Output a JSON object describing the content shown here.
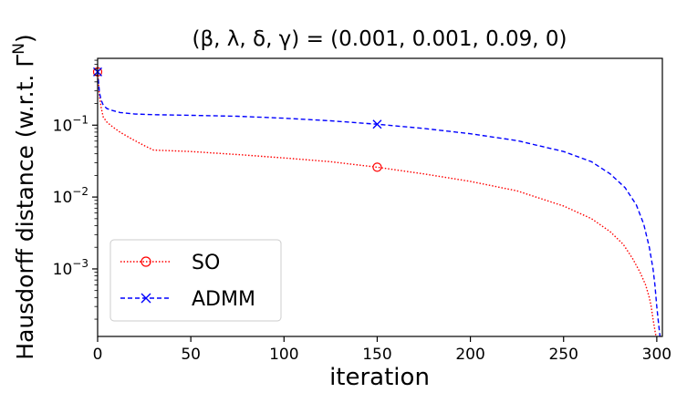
{
  "chart_data": {
    "type": "line",
    "title": "(β, λ, δ, γ) = (0.001, 0.001, 0.09, 0)",
    "xlabel": "iteration",
    "ylabel": "Hausdorff distance (w.r.t. Γ",
    "ylabel_sup": "N",
    "ylabel_end": ")",
    "xlim": [
      0,
      303
    ],
    "ylim": [
      0.000115,
      0.85
    ],
    "yscale": "log",
    "xticks": [
      0,
      50,
      100,
      150,
      200,
      250,
      300
    ],
    "xtick_labels": [
      "0",
      "50",
      "100",
      "150",
      "200",
      "250",
      "300"
    ],
    "yticks": [
      0.001,
      0.01,
      0.1
    ],
    "ytick_labels": [
      {
        "base": "10",
        "exp": "−3"
      },
      {
        "base": "10",
        "exp": "−2"
      },
      {
        "base": "10",
        "exp": "−1"
      }
    ],
    "grid": false,
    "legend": "lower-left",
    "series": [
      {
        "name": "SO",
        "color": "#ff0000",
        "linestyle": "dotted",
        "marker": "circle",
        "marker_at": [
          0,
          150
        ],
        "x": [
          0,
          1,
          2,
          3,
          5,
          8,
          12,
          18,
          25,
          30,
          50,
          75,
          100,
          125,
          150,
          175,
          200,
          225,
          250,
          265,
          275,
          282,
          287,
          291,
          294,
          296,
          297,
          298,
          299,
          300
        ],
        "y": [
          0.55,
          0.25,
          0.17,
          0.13,
          0.11,
          0.095,
          0.08,
          0.065,
          0.052,
          0.045,
          0.043,
          0.039,
          0.035,
          0.031,
          0.026,
          0.021,
          0.0165,
          0.0122,
          0.0075,
          0.005,
          0.0033,
          0.0022,
          0.0014,
          0.0009,
          0.0006,
          0.0004,
          0.0003,
          0.0002,
          0.00014,
          0.0001
        ]
      },
      {
        "name": "ADMM",
        "color": "#0000ff",
        "linestyle": "dashed",
        "marker": "x",
        "marker_at": [
          0,
          150
        ],
        "x": [
          0,
          1,
          2,
          3,
          5,
          8,
          12,
          20,
          30,
          50,
          75,
          100,
          125,
          150,
          175,
          200,
          225,
          250,
          265,
          275,
          283,
          289,
          293,
          296,
          298,
          299,
          300,
          301,
          302
        ],
        "y": [
          0.55,
          0.28,
          0.22,
          0.19,
          0.17,
          0.16,
          0.15,
          0.143,
          0.14,
          0.137,
          0.133,
          0.125,
          0.115,
          0.103,
          0.09,
          0.076,
          0.061,
          0.043,
          0.031,
          0.021,
          0.0135,
          0.0078,
          0.0042,
          0.002,
          0.001,
          0.0006,
          0.0003,
          0.00017,
          0.0001
        ]
      }
    ]
  }
}
